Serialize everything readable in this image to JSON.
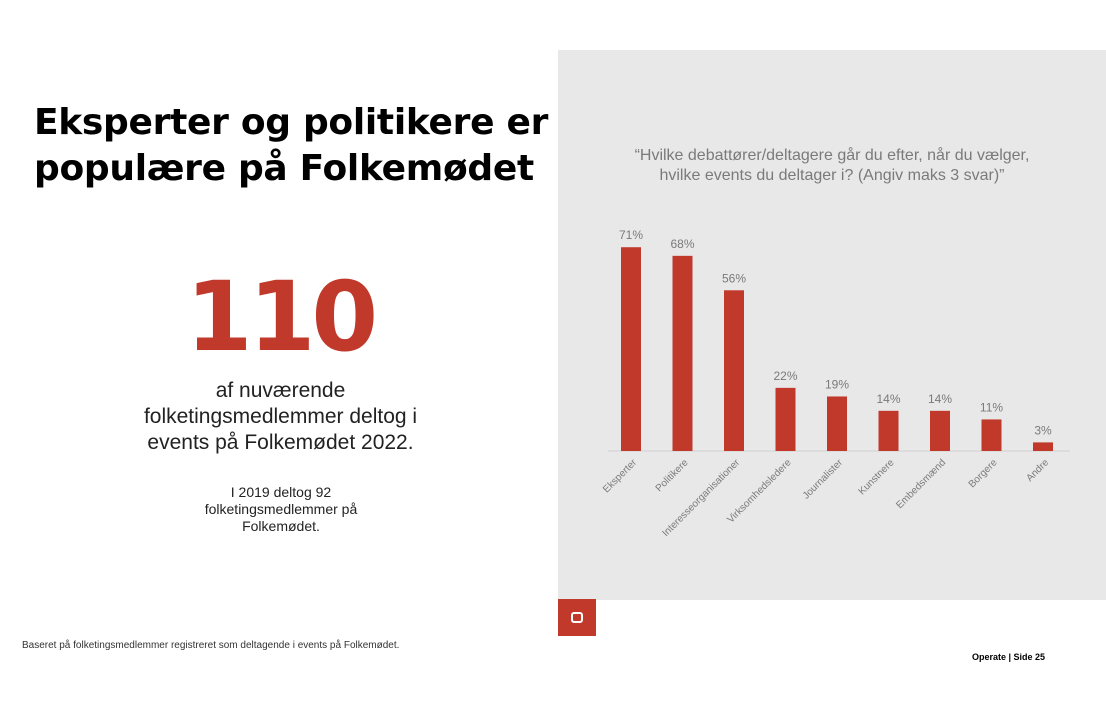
{
  "slide": {
    "title_line1": "Eksperter og politikere er",
    "title_line2": "populære på Folkemødet",
    "big_number": "110",
    "caption_line1": "af nuværende",
    "caption_line2": "folketingsmedlemmer deltog i",
    "caption_line3": "events på Folkemødet 2022.",
    "sub_line1": "I 2019 deltog 92",
    "sub_line2": "folketingsmedlemmer på",
    "sub_line3": "Folkemødet.",
    "question_line1": "“Hvilke debattører/deltagere går du efter, når du vælger,",
    "question_line2": "hvilke events du deltager i? (Angiv maks 3 svar)”",
    "footnote": "Baseret på folketingsmedlemmer registreret som deltagende i events på Folkemødet.",
    "footer": "Operate |  Side  25",
    "logo_icon": "ring-logo-icon"
  },
  "colors": {
    "accent": "#c0392b",
    "panel": "#e8e8e8",
    "label_gray": "#7a7a7a"
  },
  "chart_data": {
    "type": "bar",
    "categories": [
      "Eksperter",
      "Politikere",
      "Interesseorganisationer",
      "Virksomhedsledere",
      "Journalister",
      "Kunstnere",
      "Embedsmænd",
      "Borgere",
      "Andre"
    ],
    "values": [
      71,
      68,
      56,
      22,
      19,
      14,
      14,
      11,
      3
    ],
    "data_labels": [
      "71%",
      "68%",
      "56%",
      "22%",
      "19%",
      "14%",
      "14%",
      "11%",
      "3%"
    ],
    "ylim": [
      0,
      80
    ],
    "grid": false,
    "title": "“Hvilke debattører/deltagere går du efter, når du vælger, hvilke events du deltager i? (Angiv maks 3 svar)”",
    "xlabel": "",
    "ylabel": ""
  }
}
